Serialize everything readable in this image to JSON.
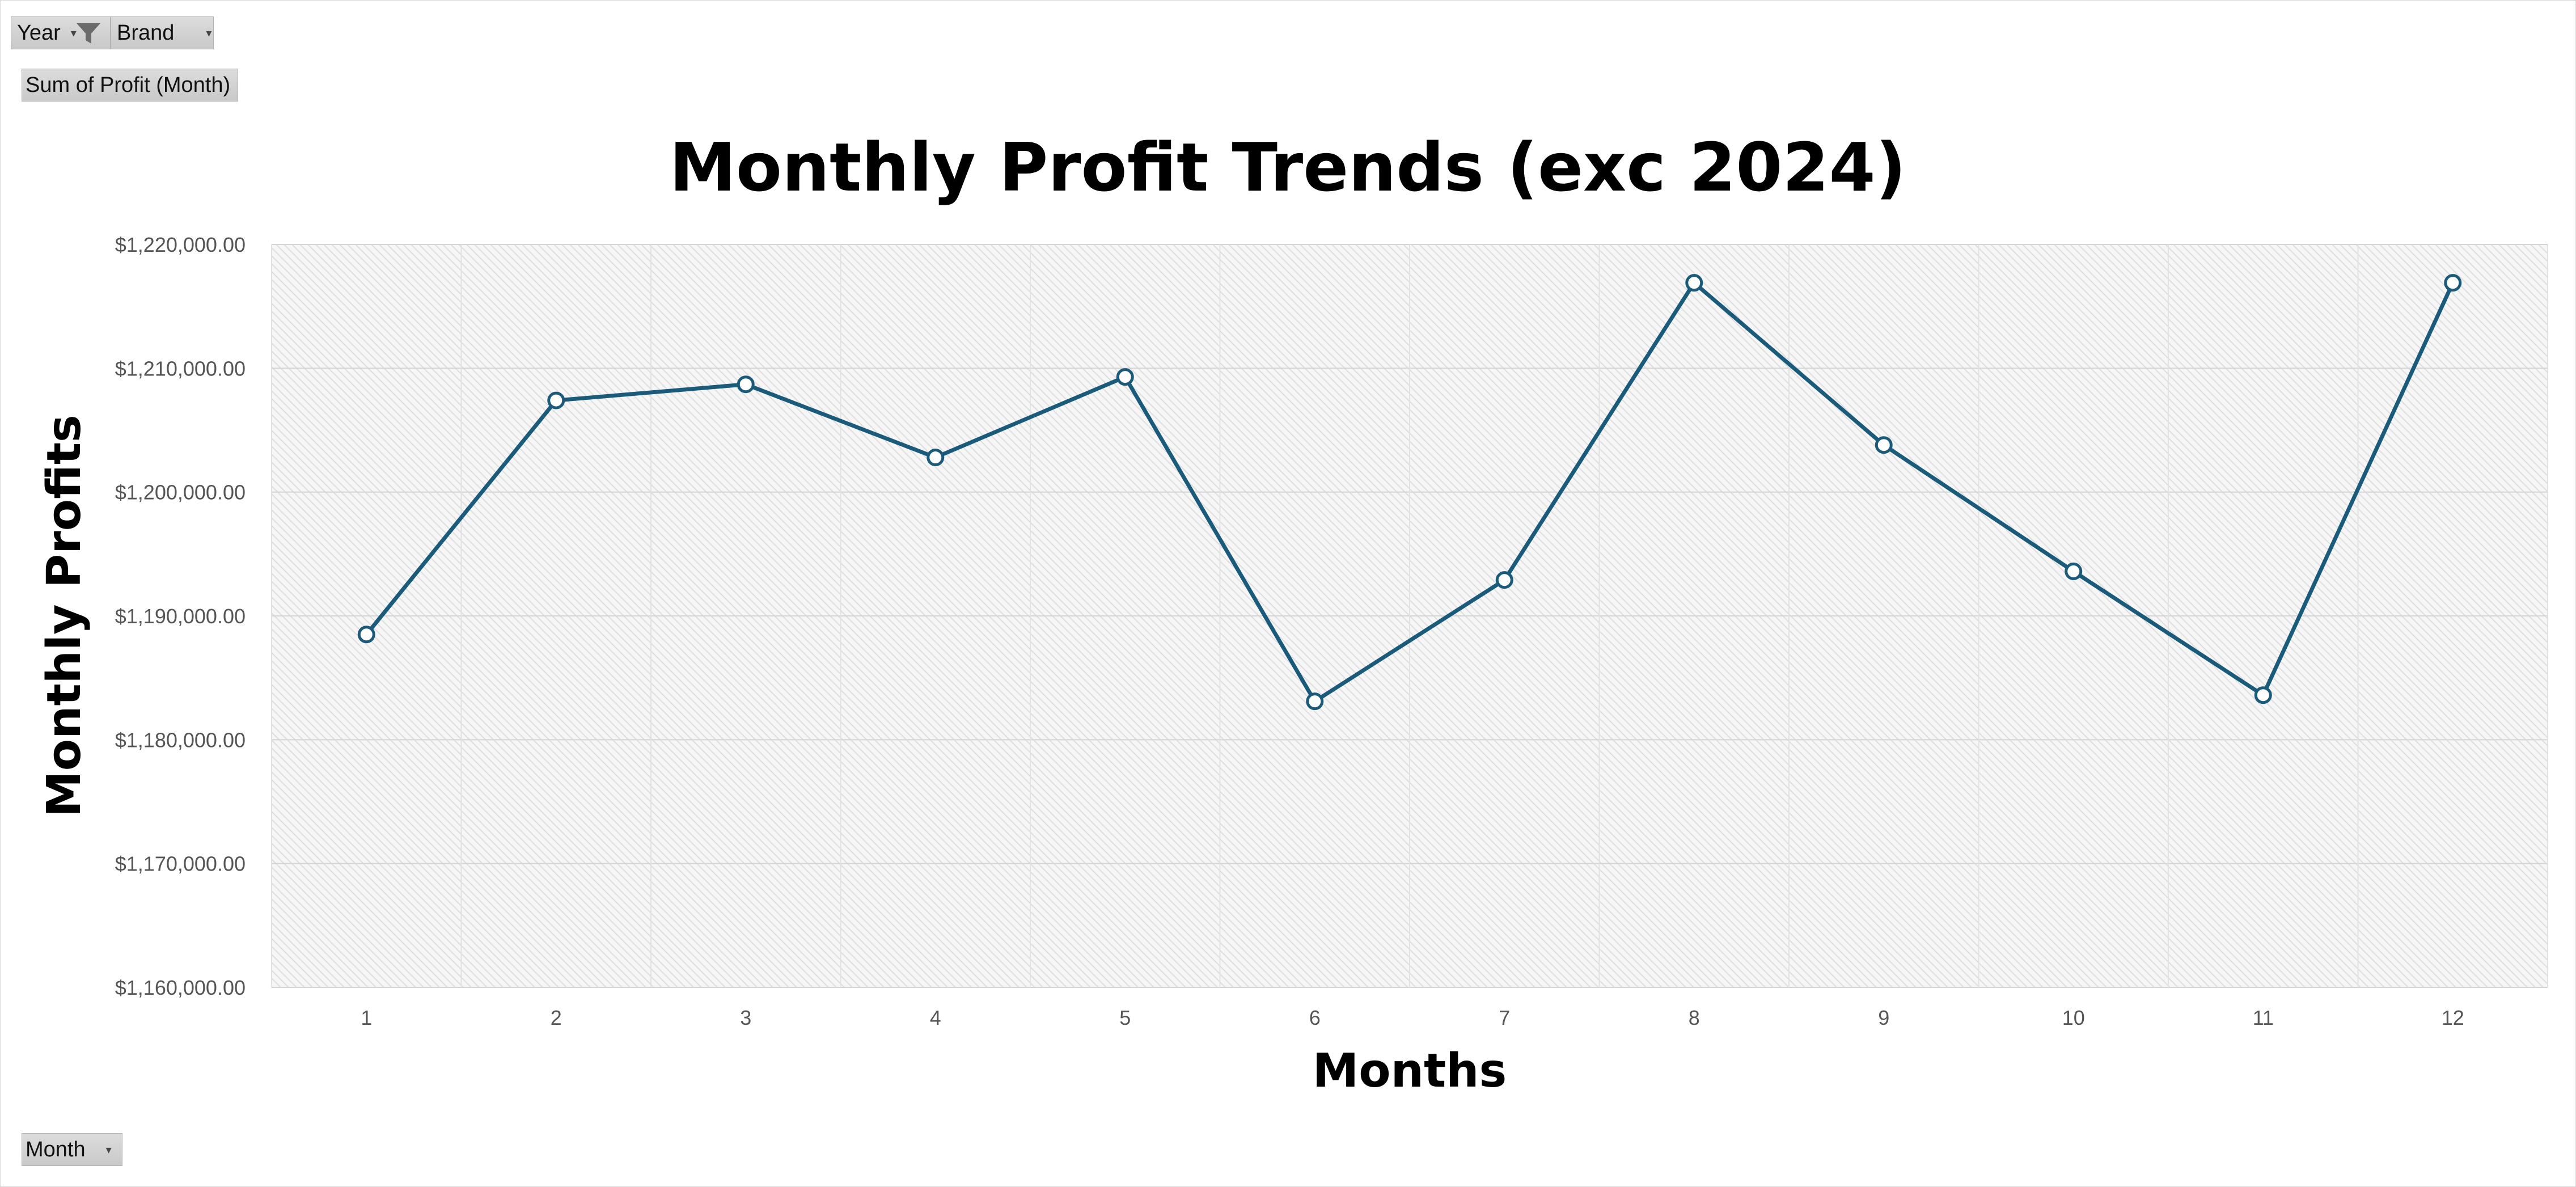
{
  "filters": {
    "year_label": "Year",
    "brand_label": "Brand",
    "measure_label": "Sum of Profit (Month)",
    "month_label": "Month"
  },
  "icons": {
    "filter": "filter-funnel-icon",
    "dropdown": "dropdown-arrow-icon"
  },
  "chart_data": {
    "type": "line",
    "title": "Monthly Profit Trends (exc 2024)",
    "xlabel": "Months",
    "ylabel": "Monthly Profits",
    "categories": [
      "1",
      "2",
      "3",
      "4",
      "5",
      "6",
      "7",
      "8",
      "9",
      "10",
      "11",
      "12"
    ],
    "values": [
      1188500,
      1207400,
      1208700,
      1202800,
      1209300,
      1183100,
      1192900,
      1216900,
      1203800,
      1193600,
      1183600,
      1216900
    ],
    "ylim": [
      1160000,
      1220000
    ],
    "yticks": [
      1160000,
      1170000,
      1180000,
      1190000,
      1200000,
      1210000,
      1220000
    ],
    "ytick_labels": [
      "$1,160,000.00",
      "$1,170,000.00",
      "$1,180,000.00",
      "$1,190,000.00",
      "$1,200,000.00",
      "$1,210,000.00",
      "$1,220,000.00"
    ],
    "grid": true,
    "legend": "none",
    "line_color": "#1a5a7a",
    "marker_fill": "#ffffff"
  }
}
